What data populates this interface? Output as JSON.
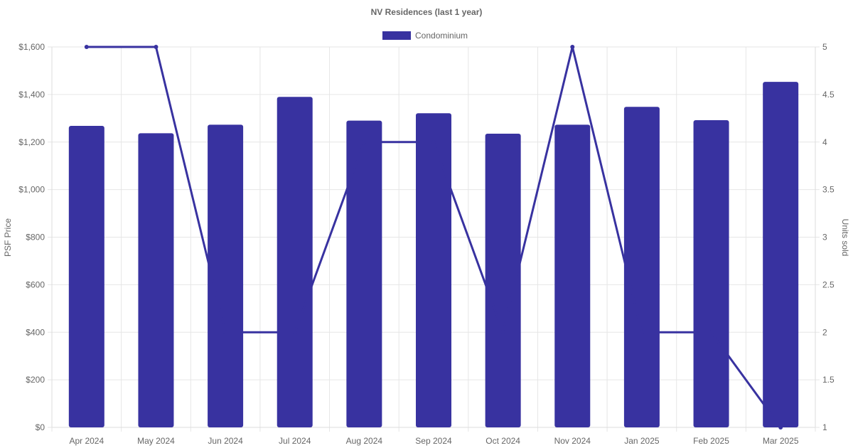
{
  "chart_data": {
    "type": "bar",
    "title": "NV Residences (last 1 year)",
    "categories": [
      "Apr 2024",
      "May 2024",
      "Jun 2024",
      "Jul 2024",
      "Aug 2024",
      "Sep 2024",
      "Oct 2024",
      "Nov 2024",
      "Jan 2025",
      "Feb 2025",
      "Mar 2025"
    ],
    "series": [
      {
        "name": "Condominium",
        "type": "bar",
        "axis": "left",
        "color": "#3832a0",
        "values": [
          1268,
          1237,
          1273,
          1390,
          1290,
          1321,
          1235,
          1273,
          1348,
          1292,
          1453
        ]
      },
      {
        "type": "line",
        "axis": "right",
        "color": "#3832a0",
        "values": [
          5,
          5,
          2,
          2,
          4,
          4,
          2,
          5,
          2,
          2,
          1
        ]
      }
    ],
    "ylabel": "PSF Price",
    "ylabel_right": "Units sold",
    "ylim": [
      0,
      1600
    ],
    "ylim_right": [
      1,
      5
    ],
    "yticks": [
      "$0",
      "$200",
      "$400",
      "$600",
      "$800",
      "$1,000",
      "$1,200",
      "$1,400",
      "$1,600"
    ],
    "yticks_right": [
      "1",
      "1.5",
      "2",
      "2.5",
      "3",
      "3.5",
      "4",
      "4.5",
      "5"
    ],
    "legend": "top-center",
    "grid": true
  }
}
